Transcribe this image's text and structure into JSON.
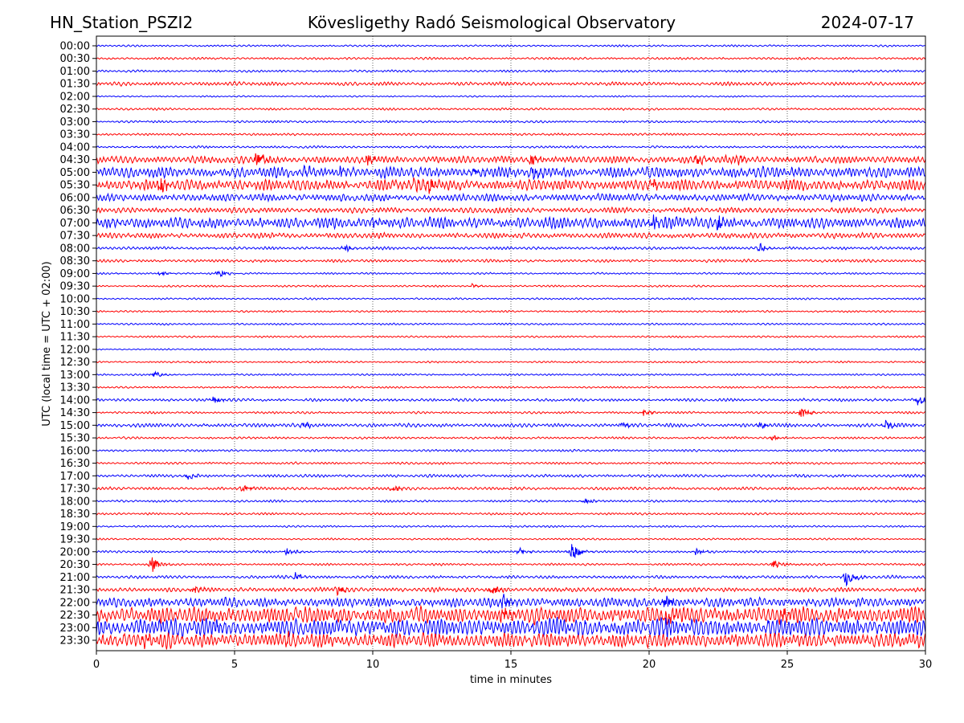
{
  "chart_data": {
    "type": "line",
    "title_left": "HN_Station_PSZI2",
    "title_center": "Kövesligethy Radó Seismological Observatory",
    "title_right": "2024-07-17",
    "xlabel": "time in minutes",
    "ylabel": "UTC (local time = UTC + 02:00)",
    "xlim": [
      0,
      30
    ],
    "xticks": [
      0,
      5,
      10,
      15,
      20,
      25,
      30
    ],
    "grid": "vertical dotted",
    "colors": [
      "#0000ff",
      "#ff0000"
    ],
    "rows": [
      "00:00",
      "00:30",
      "01:00",
      "01:30",
      "02:00",
      "02:30",
      "03:00",
      "03:30",
      "04:00",
      "04:30",
      "05:00",
      "05:30",
      "06:00",
      "06:30",
      "07:00",
      "07:30",
      "08:00",
      "08:30",
      "09:00",
      "09:30",
      "10:00",
      "10:30",
      "11:00",
      "11:30",
      "12:00",
      "12:30",
      "13:00",
      "13:30",
      "14:00",
      "14:30",
      "15:00",
      "15:30",
      "16:00",
      "16:30",
      "17:00",
      "17:30",
      "18:00",
      "18:30",
      "19:00",
      "19:30",
      "20:00",
      "20:30",
      "21:00",
      "21:30",
      "22:00",
      "22:30",
      "23:00",
      "23:30"
    ],
    "noise_level": [
      0.05,
      0.06,
      0.06,
      0.1,
      0.04,
      0.06,
      0.06,
      0.06,
      0.06,
      0.2,
      0.3,
      0.3,
      0.2,
      0.15,
      0.3,
      0.15,
      0.08,
      0.08,
      0.05,
      0.05,
      0.05,
      0.05,
      0.05,
      0.05,
      0.04,
      0.05,
      0.05,
      0.05,
      0.08,
      0.06,
      0.1,
      0.06,
      0.06,
      0.06,
      0.08,
      0.08,
      0.06,
      0.06,
      0.05,
      0.05,
      0.06,
      0.06,
      0.08,
      0.12,
      0.25,
      0.45,
      0.5,
      0.4
    ],
    "events": [
      [
        9,
        5.8,
        0.8
      ],
      [
        9,
        9.8,
        0.7
      ],
      [
        9,
        15.7,
        0.6
      ],
      [
        9,
        21.7,
        0.5
      ],
      [
        9,
        23.2,
        0.4
      ],
      [
        10,
        7.5,
        0.5
      ],
      [
        10,
        8.8,
        0.5
      ],
      [
        10,
        13.7,
        0.5
      ],
      [
        10,
        15.8,
        0.6
      ],
      [
        11,
        2.3,
        0.8
      ],
      [
        11,
        11.5,
        0.6
      ],
      [
        11,
        12.0,
        0.7
      ],
      [
        11,
        20.1,
        0.5
      ],
      [
        14,
        0.5,
        0.5
      ],
      [
        14,
        10.0,
        0.5
      ],
      [
        14,
        20.1,
        1.0
      ],
      [
        14,
        22.5,
        0.6
      ],
      [
        16,
        9.0,
        0.3
      ],
      [
        16,
        24.0,
        0.4
      ],
      [
        18,
        2.3,
        0.2
      ],
      [
        18,
        4.4,
        0.4
      ],
      [
        19,
        13.6,
        0.2
      ],
      [
        26,
        2.1,
        0.3
      ],
      [
        28,
        4.2,
        0.4
      ],
      [
        28,
        29.7,
        0.5
      ],
      [
        29,
        19.8,
        0.3
      ],
      [
        29,
        25.5,
        0.5
      ],
      [
        30,
        7.5,
        0.3
      ],
      [
        30,
        19.0,
        0.3
      ],
      [
        30,
        24.0,
        0.3
      ],
      [
        30,
        28.5,
        0.6
      ],
      [
        31,
        24.5,
        0.25
      ],
      [
        34,
        3.3,
        0.4
      ],
      [
        35,
        5.3,
        0.4
      ],
      [
        35,
        10.7,
        0.4
      ],
      [
        36,
        17.7,
        0.3
      ],
      [
        40,
        6.9,
        0.4
      ],
      [
        40,
        15.3,
        0.4
      ],
      [
        40,
        17.2,
        0.9
      ],
      [
        40,
        21.7,
        0.4
      ],
      [
        41,
        2.0,
        0.9
      ],
      [
        41,
        24.5,
        0.4
      ],
      [
        42,
        7.2,
        0.4
      ],
      [
        42,
        27.1,
        1.1
      ],
      [
        43,
        3.5,
        0.4
      ],
      [
        43,
        8.7,
        0.5
      ],
      [
        43,
        14.3,
        0.6
      ],
      [
        44,
        14.7,
        0.6
      ],
      [
        44,
        20.6,
        0.9
      ],
      [
        45,
        14.7,
        0.8
      ],
      [
        45,
        20.6,
        1.2
      ],
      [
        45,
        24.7,
        0.8
      ],
      [
        46,
        4.3,
        0.6
      ],
      [
        46,
        20.6,
        0.9
      ],
      [
        47,
        1.7,
        0.6
      ],
      [
        47,
        6.9,
        0.5
      ]
    ]
  }
}
